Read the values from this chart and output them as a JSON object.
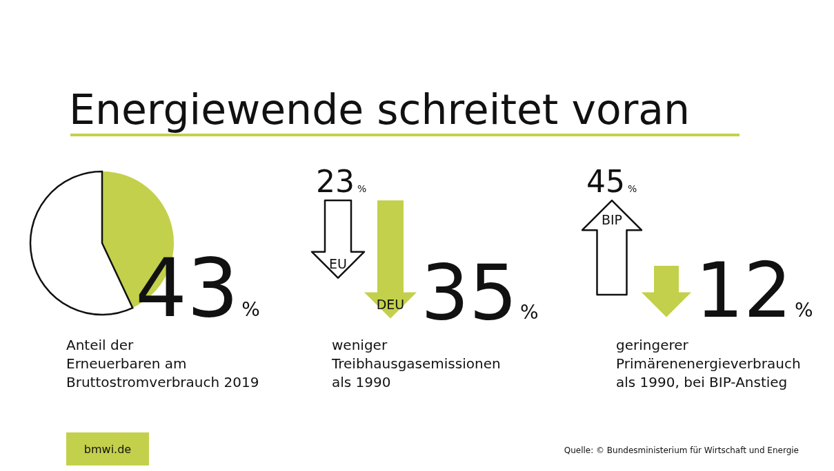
{
  "chart_data": [
    {
      "type": "pie",
      "title": "Energiewende schreitet voran",
      "categories": [
        null,
        null
      ],
      "values": [
        43,
        57
      ],
      "colors": [
        "#c3d04b",
        "#ffffff"
      ],
      "value_labels": [
        "43%",
        null
      ],
      "xlabel": "Anteil der\nErneuerbaren am\nBruttostromverbrauch 2019",
      "annotations": [
        "bmwi.de",
        "Quelle: © Bundesministerium für Wirtschaft und Energie"
      ]
    },
    {
      "type": "other",
      "categories": [
        "EU",
        "DEU"
      ],
      "values": [
        23,
        35
      ],
      "colors": [
        "#ffffff",
        "#c3d04b"
      ],
      "value_labels": [
        "23%",
        "35%"
      ],
      "xlabel": "weniger\nTreibhausgasemissionen\nals 1990"
    },
    {
      "type": "other",
      "categories": [
        "BIP"
      ],
      "values": [
        45
      ],
      "colors": [
        "#ffffff"
      ],
      "value_labels": [
        "45%"
      ]
    },
    {
      "type": "other",
      "categories": [
        null
      ],
      "values": [
        12
      ],
      "colors": [
        "#c3d04b"
      ],
      "value_labels": [
        "12%"
      ],
      "xlabel": "geringerer\nPrimärenenergieverbrauch\nals 1990, bei BIP-Anstieg"
    }
  ]
}
